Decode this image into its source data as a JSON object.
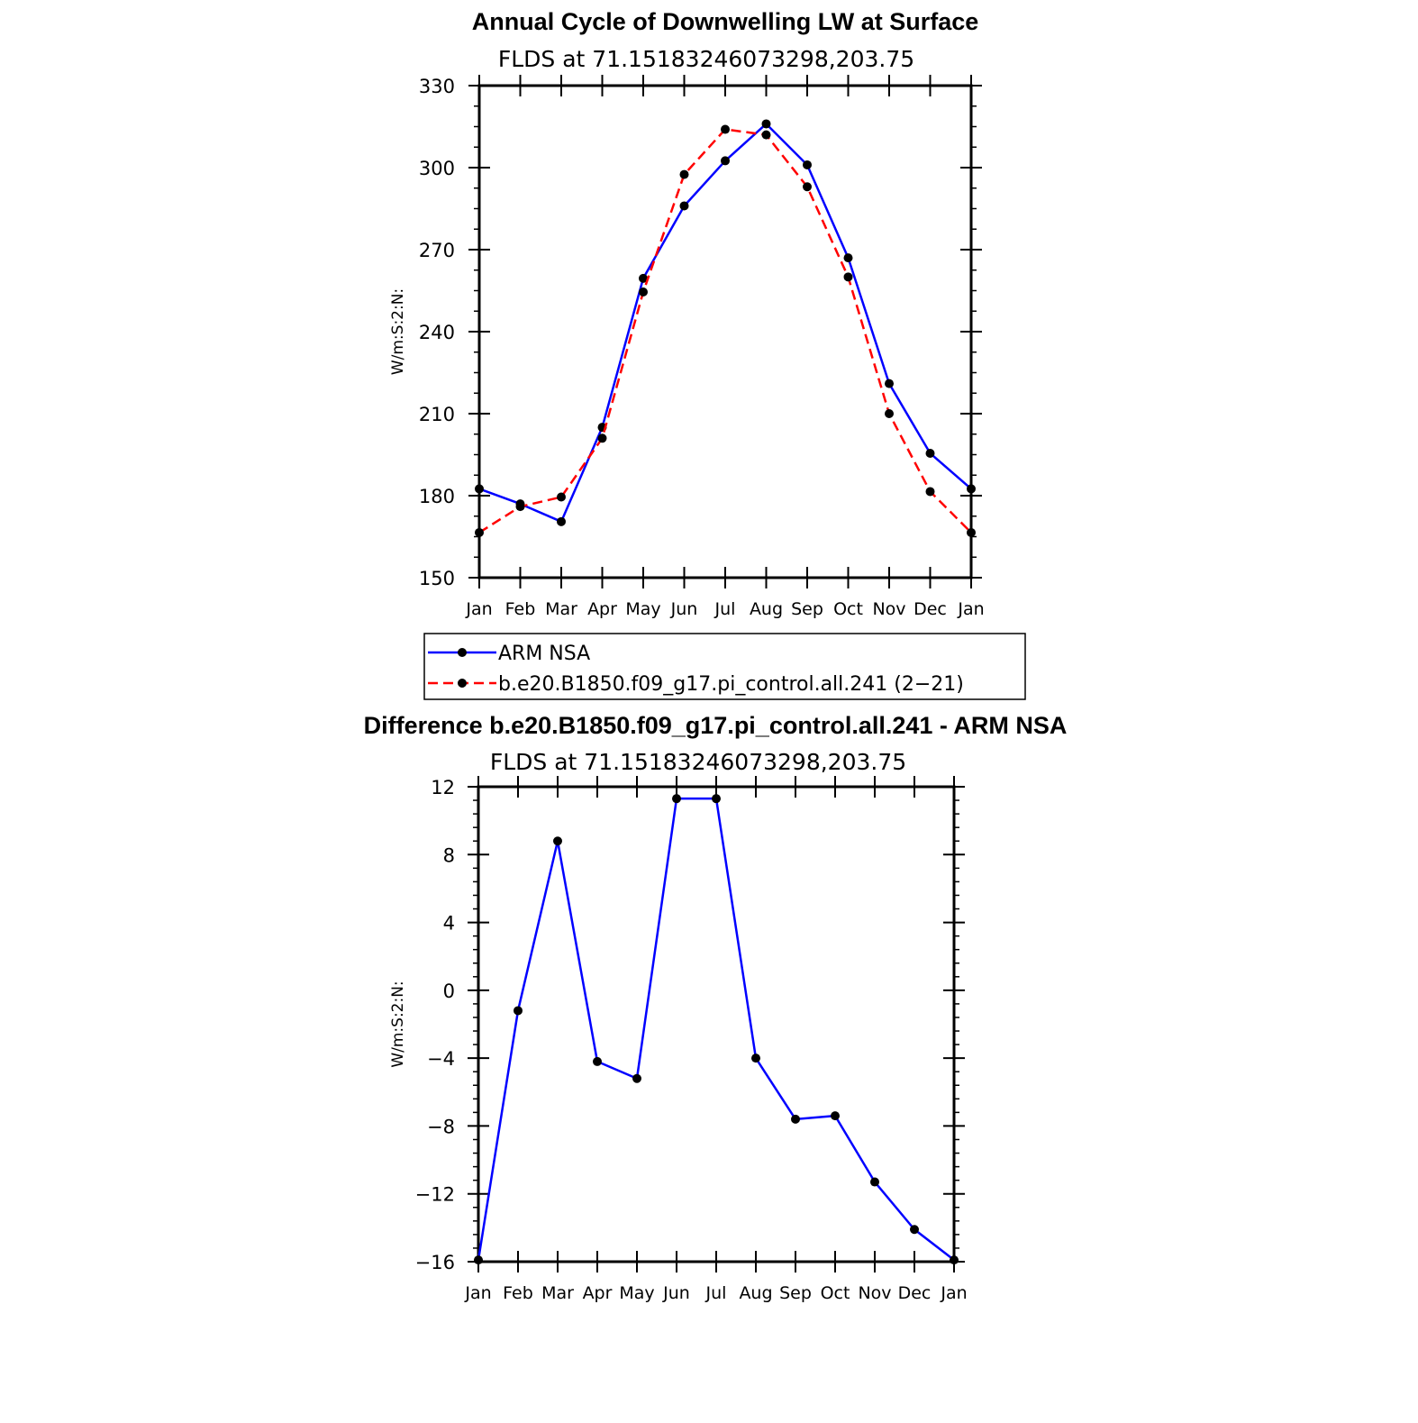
{
  "colors": {
    "obs": "#0000ff",
    "model": "#ff0000",
    "marker": "#000000",
    "axis": "#000000",
    "background": "#ffffff"
  },
  "chart_data": [
    {
      "type": "line",
      "title": "Annual Cycle of Downwelling LW at Surface",
      "subtitle": "FLDS at 71.15183246073298,203.75",
      "xlabel": "",
      "ylabel": "W/m:S:2:N:",
      "categories": [
        "Jan",
        "Feb",
        "Mar",
        "Apr",
        "May",
        "Jun",
        "Jul",
        "Aug",
        "Sep",
        "Oct",
        "Nov",
        "Dec",
        "Jan"
      ],
      "ylim": [
        150,
        330
      ],
      "yticks": [
        "150",
        "180",
        "210",
        "240",
        "270",
        "300",
        "330"
      ],
      "grid": false,
      "legend_placement": "bottom",
      "series": [
        {
          "name": "ARM NSA",
          "style": "solid",
          "color": "#0000ff",
          "values": [
            182.5,
            177,
            170.5,
            205,
            259.5,
            286,
            302.5,
            316,
            301,
            267,
            221,
            195.5,
            182.5
          ]
        },
        {
          "name": "b.e20.B1850.f09_g17.pi_control.all.241 (2−21)",
          "style": "dashed",
          "color": "#ff0000",
          "values": [
            166.5,
            176,
            179.5,
            201,
            254.5,
            297.5,
            314,
            312,
            293,
            260,
            210,
            181.5,
            166.5
          ]
        }
      ]
    },
    {
      "type": "line",
      "title": "Difference b.e20.B1850.f09_g17.pi_control.all.241 - ARM NSA",
      "subtitle": "FLDS at 71.15183246073298,203.75",
      "xlabel": "",
      "ylabel": "W/m:S:2:N:",
      "categories": [
        "Jan",
        "Feb",
        "Mar",
        "Apr",
        "May",
        "Jun",
        "Jul",
        "Aug",
        "Sep",
        "Oct",
        "Nov",
        "Dec",
        "Jan"
      ],
      "ylim": [
        -16,
        12
      ],
      "yticks": [
        "−16",
        "−12",
        "−8",
        "−4",
        "0",
        "4",
        "8",
        "12"
      ],
      "grid": false,
      "series": [
        {
          "style": "solid",
          "color": "#0000ff",
          "values": [
            -15.9,
            -1.2,
            8.8,
            -4.2,
            -5.2,
            11.3,
            11.3,
            -4.0,
            -7.6,
            -7.4,
            -11.3,
            -14.1,
            -15.9
          ]
        }
      ]
    }
  ]
}
